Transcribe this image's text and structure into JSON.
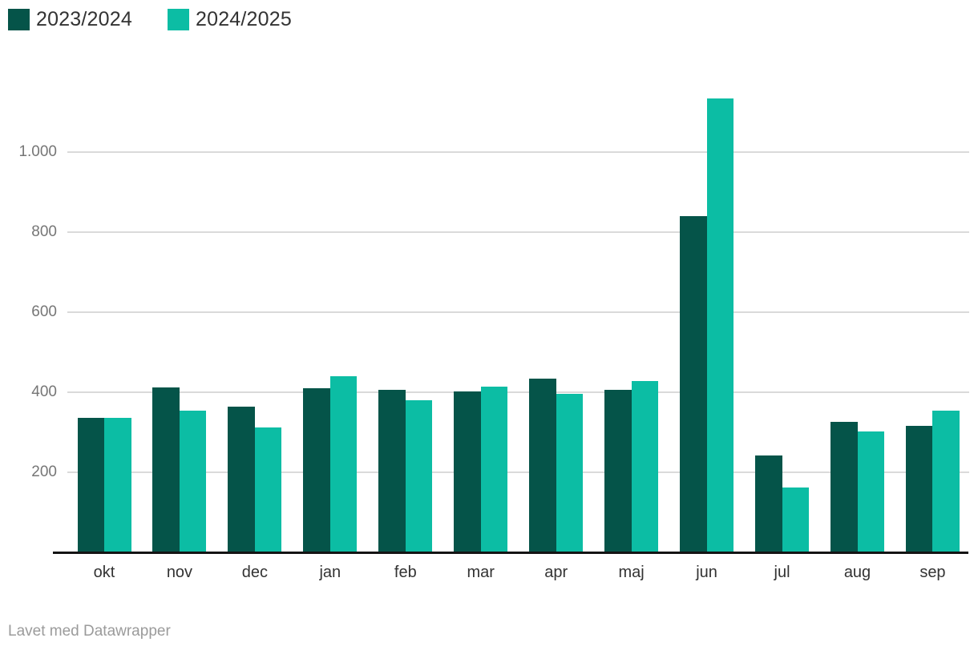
{
  "legend": {
    "items": [
      {
        "label": "2023/2024",
        "color": "#055449"
      },
      {
        "label": "2024/2025",
        "color": "#0cbda4"
      }
    ]
  },
  "footer": {
    "text": "Lavet med Datawrapper"
  },
  "chart_data": {
    "type": "bar",
    "title": "",
    "xlabel": "",
    "ylabel": "",
    "categories": [
      "okt",
      "nov",
      "dec",
      "jan",
      "feb",
      "mar",
      "apr",
      "maj",
      "jun",
      "jul",
      "aug",
      "sep"
    ],
    "series": [
      {
        "name": "2023/2024",
        "color": "#055449",
        "values": [
          337,
          413,
          364,
          411,
          407,
          403,
          435,
          407,
          840,
          242,
          326,
          317
        ]
      },
      {
        "name": "2024/2025",
        "color": "#0cbda4",
        "values": [
          337,
          355,
          312,
          441,
          381,
          415,
          396,
          429,
          1134,
          163,
          302,
          355
        ]
      }
    ],
    "yticks": [
      200,
      400,
      600,
      800,
      1000
    ],
    "ytick_labels": [
      "200",
      "400",
      "600",
      "800",
      "1.000"
    ],
    "ylim": [
      0,
      1150
    ],
    "grid": "horizontal",
    "gridline_color": "#dadada",
    "axis_line_color": "#141414",
    "legend_position": "top-left"
  }
}
